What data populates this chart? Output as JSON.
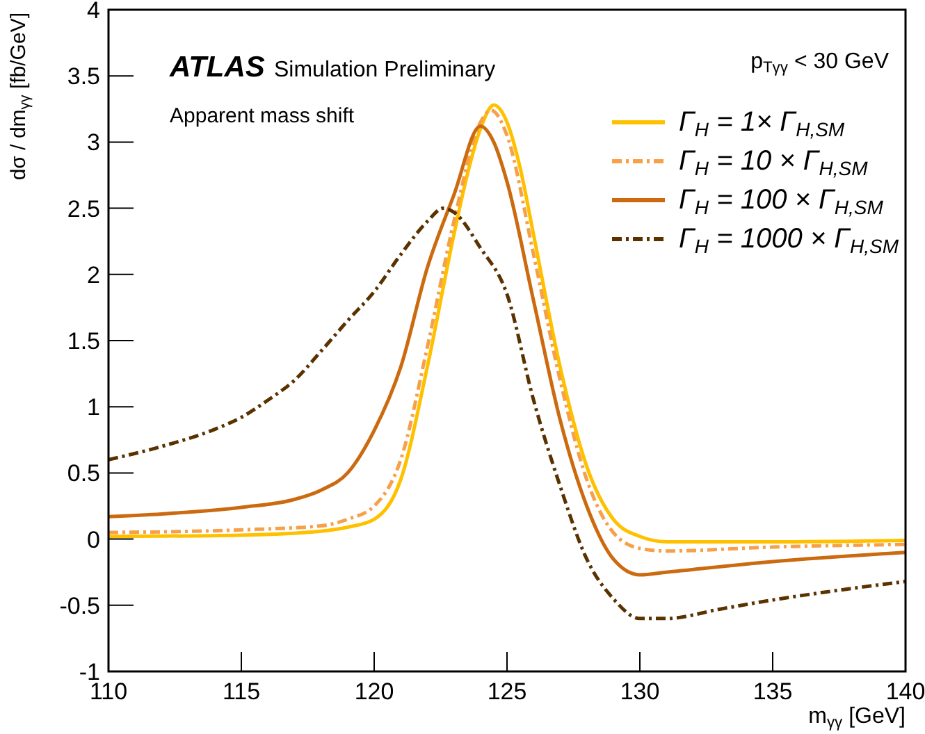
{
  "chart_data": {
    "type": "line",
    "xlabel": "m$_{γγ}$ [GeV]",
    "ylabel": "dσ / dm$_{γγ}$ [fb/GeV]",
    "annotations": [
      "ATLAS",
      "Simulation Preliminary",
      "Apparent mass shift",
      "p$_{Tγγ}$ < 30 GeV"
    ],
    "xlim": [
      110,
      140
    ],
    "xticks": [
      110,
      115,
      120,
      125,
      130,
      135,
      140
    ],
    "ylim": [
      -1,
      4
    ],
    "yticks": [
      -1,
      -0.5,
      0,
      0.5,
      1,
      1.5,
      2,
      2.5,
      3,
      3.5,
      4
    ],
    "grid": false,
    "legend": "top right",
    "marker": "none",
    "series": [
      {
        "name": "Γ$_{H}$ = 1× Γ$_{H,SM}$",
        "color": "#ffc000",
        "line_style": "solid",
        "x": [
          110,
          115,
          118,
          119,
          120,
          121,
          122,
          123,
          123.5,
          124,
          124.5,
          125,
          125.5,
          126,
          127,
          128,
          129,
          130,
          131,
          135,
          140
        ],
        "values": [
          0.02,
          0.03,
          0.06,
          0.09,
          0.15,
          0.45,
          1.3,
          2.3,
          2.75,
          3.1,
          3.28,
          3.15,
          2.8,
          2.3,
          1.3,
          0.55,
          0.15,
          0.02,
          -0.02,
          -0.02,
          -0.01
        ]
      },
      {
        "name": "Γ$_{H}$ = 10 × Γ$_{H,SM}$",
        "color": "#f7a04a",
        "line_style": "dashed",
        "x": [
          110,
          115,
          118,
          119,
          120,
          121,
          122,
          123,
          124,
          124.4,
          125,
          126,
          127,
          128,
          129,
          130,
          131,
          135,
          140
        ],
        "values": [
          0.05,
          0.07,
          0.1,
          0.15,
          0.25,
          0.6,
          1.45,
          2.4,
          3.15,
          3.24,
          3.05,
          2.15,
          1.2,
          0.45,
          0.05,
          -0.07,
          -0.09,
          -0.06,
          -0.04
        ]
      },
      {
        "name": "Γ$_{H}$ = 100 × Γ$_{H,SM}$",
        "color": "#cc6a10",
        "line_style": "solid",
        "x": [
          110,
          112,
          115,
          117,
          118,
          119,
          120,
          121,
          122,
          123,
          124,
          124.5,
          125,
          126,
          127,
          128,
          129,
          130,
          131,
          135,
          140
        ],
        "values": [
          0.17,
          0.19,
          0.24,
          0.3,
          0.37,
          0.5,
          0.82,
          1.3,
          2.05,
          2.6,
          3.12,
          3.0,
          2.7,
          1.8,
          0.9,
          0.25,
          -0.15,
          -0.27,
          -0.25,
          -0.17,
          -0.1
        ]
      },
      {
        "name": "Γ$_{H}$ = 1000 × Γ$_{H,SM}$",
        "color": "#5a3200",
        "line_style": "dashed",
        "x": [
          110,
          112,
          114,
          115,
          116,
          117,
          118,
          119,
          120,
          121,
          122,
          122.6,
          123,
          124,
          125,
          126,
          127,
          128,
          129,
          130,
          131,
          133,
          135,
          137,
          140
        ],
        "values": [
          0.6,
          0.7,
          0.83,
          0.92,
          1.05,
          1.2,
          1.42,
          1.65,
          1.87,
          2.15,
          2.4,
          2.5,
          2.47,
          2.2,
          1.85,
          1.05,
          0.4,
          -0.15,
          -0.45,
          -0.6,
          -0.6,
          -0.53,
          -0.46,
          -0.4,
          -0.32
        ]
      }
    ]
  }
}
